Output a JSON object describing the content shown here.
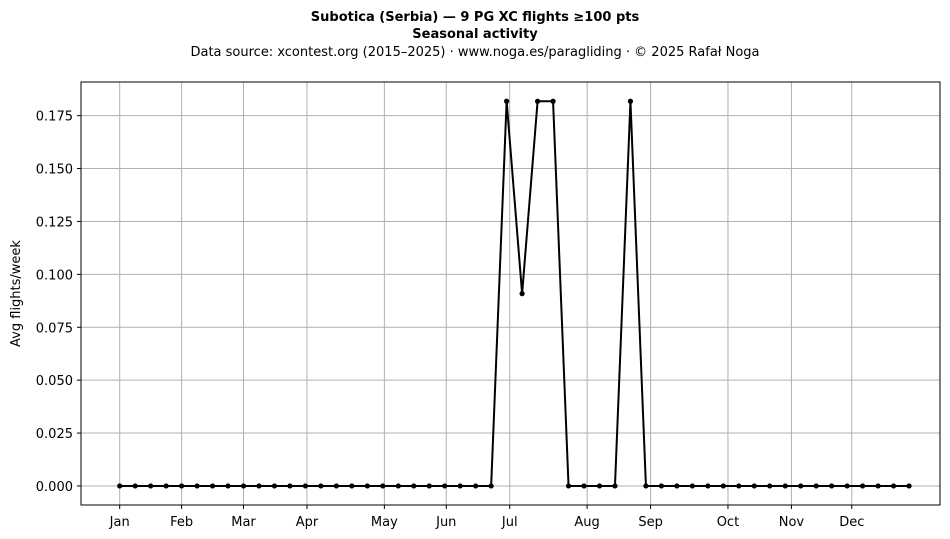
{
  "chart_data": {
    "type": "line",
    "title": "Subotica (Serbia)  —  9 PG XC flights ≥100 pts",
    "subtitle": "Seasonal activity",
    "source_note": "Data source: xcontest.org (2015–2025)  ·  www.noga.es/paragliding  ·  © 2025 Rafał Noga",
    "xlabel": "",
    "ylabel": "Avg flights/week",
    "x": [
      1,
      2,
      3,
      4,
      5,
      6,
      7,
      8,
      9,
      10,
      11,
      12,
      13,
      14,
      15,
      16,
      17,
      18,
      19,
      20,
      21,
      22,
      23,
      24,
      25,
      26,
      27,
      28,
      29,
      30,
      31,
      32,
      33,
      34,
      35,
      36,
      37,
      38,
      39,
      40,
      41,
      42,
      43,
      44,
      45,
      46,
      47,
      48,
      49,
      50,
      51,
      52
    ],
    "values": [
      0,
      0,
      0,
      0,
      0,
      0,
      0,
      0,
      0,
      0,
      0,
      0,
      0,
      0,
      0,
      0,
      0,
      0,
      0,
      0,
      0,
      0,
      0,
      0,
      0,
      0.1818,
      0.0909,
      0.1818,
      0.1818,
      0,
      0,
      0,
      0,
      0.1818,
      0,
      0,
      0,
      0,
      0,
      0,
      0,
      0,
      0,
      0,
      0,
      0,
      0,
      0,
      0,
      0,
      0,
      0
    ],
    "xlim": [
      -1.5,
      54
    ],
    "ylim": [
      -0.009,
      0.1909
    ],
    "month_ticks": [
      {
        "label": "Jan",
        "x": 1
      },
      {
        "label": "Feb",
        "x": 5.0
      },
      {
        "label": "Mar",
        "x": 9.0
      },
      {
        "label": "Apr",
        "x": 13.1
      },
      {
        "label": "May",
        "x": 18.1
      },
      {
        "label": "Jun",
        "x": 22.1
      },
      {
        "label": "Jul",
        "x": 26.2
      },
      {
        "label": "Aug",
        "x": 31.2
      },
      {
        "label": "Sep",
        "x": 35.3
      },
      {
        "label": "Oct",
        "x": 40.3
      },
      {
        "label": "Nov",
        "x": 44.4
      },
      {
        "label": "Dec",
        "x": 48.3
      }
    ],
    "y_ticks": [
      "0.000",
      "0.025",
      "0.050",
      "0.075",
      "0.100",
      "0.125",
      "0.150",
      "0.175"
    ],
    "grid": true,
    "line_color": "#000000",
    "grid_color": "#b0b0b0"
  }
}
